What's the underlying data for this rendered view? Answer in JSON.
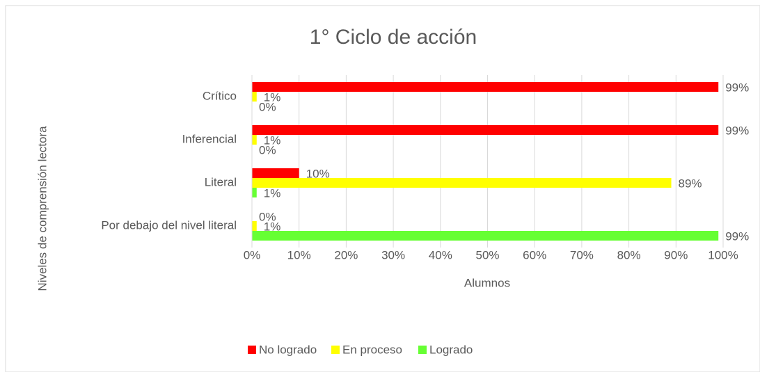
{
  "chart_data": {
    "type": "barh",
    "title": "1° Ciclo de acción",
    "x_label": "Alumnos",
    "y_label": "Niveles de comprensión lectora",
    "categories": [
      "Crítico",
      "Inferencial",
      "Literal",
      "Por debajo del nivel literal"
    ],
    "series": [
      {
        "name": "No logrado",
        "color": "#ff0000",
        "values": [
          99,
          99,
          10,
          0
        ],
        "value_labels": [
          "99%",
          "99%",
          "10%",
          "0%"
        ]
      },
      {
        "name": "En proceso",
        "color": "#ffff00",
        "values": [
          1,
          1,
          89,
          1
        ],
        "value_labels": [
          "1%",
          "1%",
          "89%",
          "1%"
        ]
      },
      {
        "name": "Logrado",
        "color": "#66ff33",
        "values": [
          0,
          0,
          1,
          99
        ],
        "value_labels": [
          "0%",
          "0%",
          "1%",
          "99%"
        ]
      }
    ],
    "xlim": [
      0,
      100
    ],
    "xticks": [
      {
        "value": 0,
        "label": "0%"
      },
      {
        "value": 10,
        "label": "10%"
      },
      {
        "value": 20,
        "label": "20%"
      },
      {
        "value": 30,
        "label": "30%"
      },
      {
        "value": 40,
        "label": "40%"
      },
      {
        "value": 50,
        "label": "50%"
      },
      {
        "value": 60,
        "label": "60%"
      },
      {
        "value": 70,
        "label": "70%"
      },
      {
        "value": 80,
        "label": "80%"
      },
      {
        "value": 90,
        "label": "90%"
      },
      {
        "value": 100,
        "label": "100%"
      }
    ],
    "grid": true,
    "legend": "bottom"
  }
}
